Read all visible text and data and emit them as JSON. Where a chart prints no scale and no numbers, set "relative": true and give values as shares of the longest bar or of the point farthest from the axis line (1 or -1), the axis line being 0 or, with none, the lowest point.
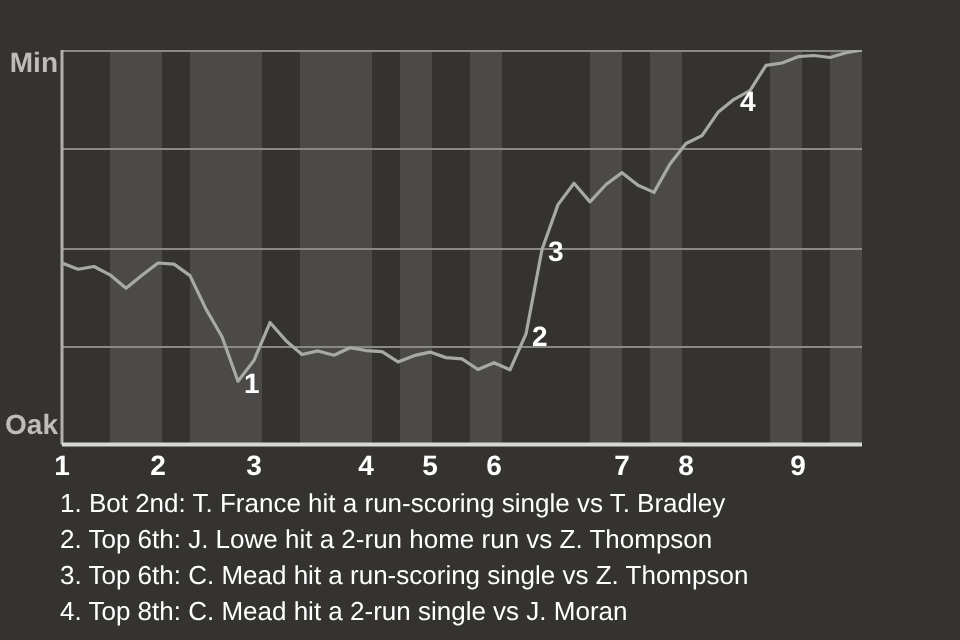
{
  "chart_data": {
    "type": "line",
    "relative": true,
    "marker": "none",
    "line_style": "solid",
    "grid": "y",
    "legend": false,
    "categories": [
      "1",
      null,
      null,
      null,
      null,
      null,
      "2",
      null,
      null,
      null,
      null,
      null,
      "3",
      null,
      null,
      null,
      null,
      null,
      null,
      "4",
      null,
      null,
      null,
      "5",
      null,
      null,
      null,
      "6",
      null,
      null,
      null,
      null,
      null,
      null,
      null,
      "7",
      null,
      null,
      null,
      "8",
      null,
      null,
      null,
      null,
      null,
      null,
      "9",
      null,
      null,
      null,
      null
    ],
    "series": [
      {
        "color": "#a8a8a6",
        "values": [
          0.46,
          0.444,
          0.451,
          0.43,
          0.396,
          0.429,
          0.46,
          0.457,
          0.428,
          0.343,
          0.273,
          0.16,
          0.213,
          0.309,
          0.263,
          0.228,
          0.237,
          0.226,
          0.245,
          0.238,
          0.235,
          0.209,
          0.225,
          0.234,
          0.22,
          0.217,
          0.19,
          0.207,
          0.189,
          0.28,
          0.494,
          0.608,
          0.662,
          0.615,
          0.659,
          0.689,
          0.657,
          0.639,
          0.711,
          0.763,
          0.783,
          0.842,
          0.875,
          0.897,
          0.961,
          0.967,
          0.983,
          0.986,
          0.981,
          0.993,
          1
        ]
      }
    ],
    "annotations": [
      "Min",
      "Oak",
      "1",
      "2",
      "3",
      "4",
      "1. Bot 2nd: T. France hit a run-scoring single vs T. Bradley",
      "2. Top 6th: J. Lowe hit a 2-run home run vs Z. Thompson",
      "3. Top 6th: C. Mead hit a run-scoring single vs Z. Thompson",
      "4. Top 8th: C. Mead hit a 2-run single vs J. Moran"
    ]
  }
}
